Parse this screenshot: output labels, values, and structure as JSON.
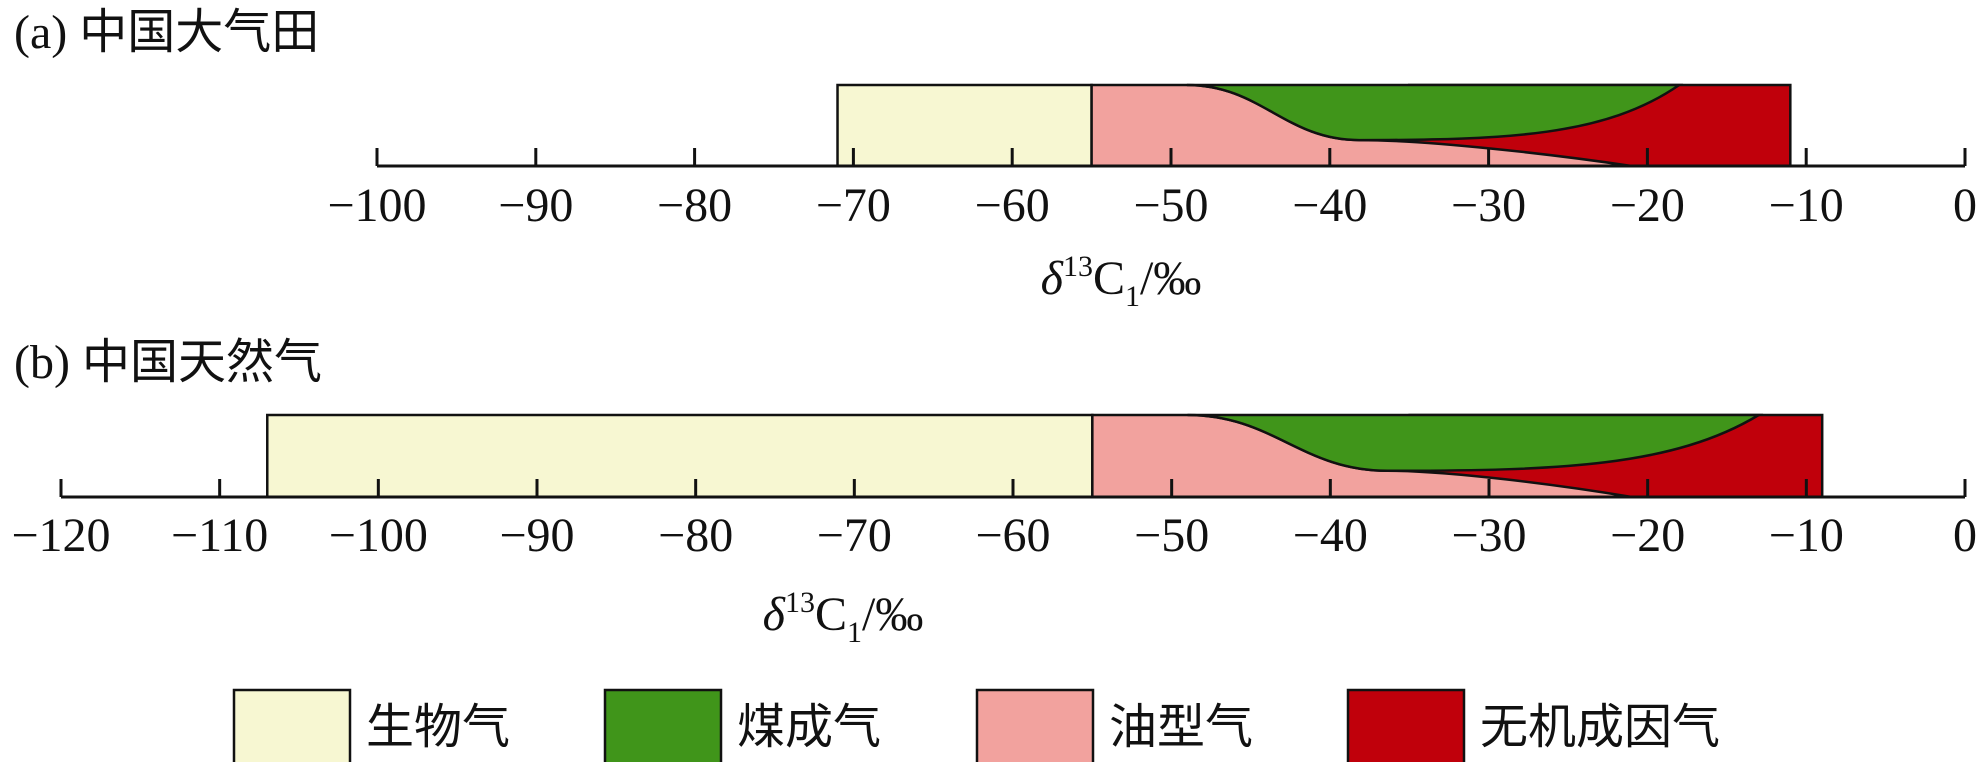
{
  "legend": [
    {
      "name": "生物气",
      "color": "#f7f7d2"
    },
    {
      "name": "煤成气",
      "color": "#40951a"
    },
    {
      "name": "油型气",
      "color": "#f2a29e"
    },
    {
      "name": "无机成因气",
      "color": "#c0000b"
    }
  ],
  "chart_data": [
    {
      "type": "range",
      "title": "(a) 中国大气田",
      "xlabel": [
        "δ",
        "13",
        "C",
        "1",
        "/‰"
      ],
      "series": [
        {
          "values": [
            -71,
            -55
          ]
        },
        {
          "values": [
            -49,
            -18
          ]
        },
        {
          "values": [
            -55,
            -21
          ]
        },
        {
          "values": [
            -35,
            -11
          ]
        }
      ],
      "xlim": [
        -100,
        0
      ],
      "xticks": [
        {
          "value": -100,
          "label": "−100"
        },
        {
          "value": -90,
          "label": "−90"
        },
        {
          "value": -80,
          "label": "−80"
        },
        {
          "value": -70,
          "label": "−70"
        },
        {
          "value": -60,
          "label": "−60"
        },
        {
          "value": -50,
          "label": "−50"
        },
        {
          "value": -40,
          "label": "−40"
        },
        {
          "value": -30,
          "label": "−30"
        },
        {
          "value": -20,
          "label": "−20"
        },
        {
          "value": -10,
          "label": "−10"
        },
        0
      ]
    },
    {
      "type": "range",
      "title": "(b) 中国天然气",
      "xlabel": [
        "δ",
        "13",
        "C",
        "1",
        "/‰"
      ],
      "series": [
        {
          "values": [
            -107,
            -55
          ]
        },
        {
          "values": [
            -49,
            -13
          ]
        },
        {
          "values": [
            -55,
            -21
          ]
        },
        {
          "values": [
            -35,
            -9
          ]
        }
      ],
      "xlim": [
        -120,
        0
      ],
      "xticks": [
        {
          "value": -120,
          "label": "−120"
        },
        {
          "value": -110,
          "label": "−110"
        },
        {
          "value": -100,
          "label": "−100"
        },
        {
          "value": -90,
          "label": "−90"
        },
        {
          "value": -80,
          "label": "−80"
        },
        {
          "value": -70,
          "label": "−70"
        },
        {
          "value": -60,
          "label": "−60"
        },
        {
          "value": -50,
          "label": "−50"
        },
        {
          "value": -40,
          "label": "−40"
        },
        {
          "value": -30,
          "label": "−30"
        },
        {
          "value": -20,
          "label": "−20"
        },
        {
          "value": -10,
          "label": "−10"
        },
        0
      ]
    }
  ]
}
